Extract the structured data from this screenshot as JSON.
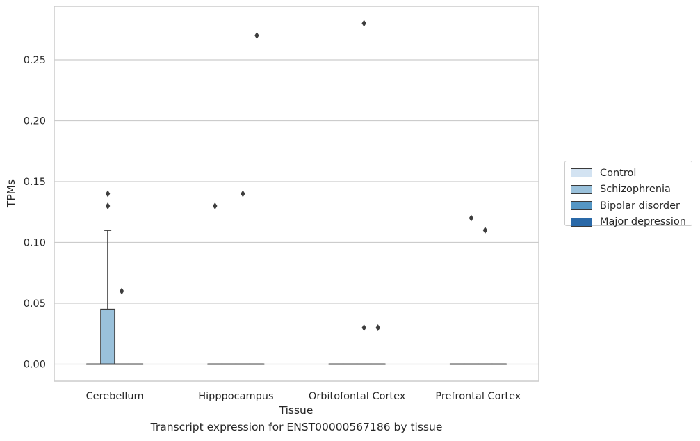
{
  "chart_data": {
    "type": "box",
    "title": "",
    "caption": "Transcript expression for ENST00000567186 by tissue",
    "xlabel": "Tissue",
    "ylabel": "TPMs",
    "categories": [
      "Cerebellum",
      "Hipppocampus",
      "Orbitofontal Cortex",
      "Prefrontal Cortex"
    ],
    "ylim": [
      -0.014,
      0.294
    ],
    "yticks": [
      "0.00",
      "0.05",
      "0.10",
      "0.15",
      "0.20",
      "0.25"
    ],
    "grid": true,
    "legend_position": "right",
    "series": [
      {
        "name": "Control",
        "color": "#d3e3f2",
        "boxes": [
          {
            "q1": 0,
            "median": 0,
            "q3": 0,
            "whislo": 0,
            "whishi": 0,
            "fliers": []
          },
          {
            "q1": 0,
            "median": 0,
            "q3": 0,
            "whislo": 0,
            "whishi": 0,
            "fliers": [
              0.13
            ]
          },
          {
            "q1": 0,
            "median": 0,
            "q3": 0,
            "whislo": 0,
            "whishi": 0,
            "fliers": []
          },
          {
            "q1": 0,
            "median": 0,
            "q3": 0,
            "whislo": 0,
            "whishi": 0,
            "fliers": []
          }
        ]
      },
      {
        "name": "Schizophrenia",
        "color": "#9ac1db",
        "boxes": [
          {
            "q1": 0,
            "median": 0,
            "q3": 0.045,
            "whislo": 0,
            "whishi": 0.11,
            "fliers": [
              0.13,
              0.14
            ]
          },
          {
            "q1": 0,
            "median": 0,
            "q3": 0,
            "whislo": 0,
            "whishi": 0,
            "fliers": []
          },
          {
            "q1": 0,
            "median": 0,
            "q3": 0,
            "whislo": 0,
            "whishi": 0,
            "fliers": []
          },
          {
            "q1": 0,
            "median": 0,
            "q3": 0,
            "whislo": 0,
            "whishi": 0,
            "fliers": [
              0.12
            ]
          }
        ]
      },
      {
        "name": "Bipolar disorder",
        "color": "#5596c4",
        "boxes": [
          {
            "q1": 0,
            "median": 0,
            "q3": 0,
            "whislo": 0,
            "whishi": 0,
            "fliers": [
              0.06
            ]
          },
          {
            "q1": 0,
            "median": 0,
            "q3": 0,
            "whislo": 0,
            "whishi": 0,
            "fliers": [
              0.14
            ]
          },
          {
            "q1": 0,
            "median": 0,
            "q3": 0,
            "whislo": 0,
            "whishi": 0,
            "fliers": [
              0.28,
              0.03
            ]
          },
          {
            "q1": 0,
            "median": 0,
            "q3": 0,
            "whislo": 0,
            "whishi": 0,
            "fliers": [
              0.11
            ]
          }
        ]
      },
      {
        "name": "Major depression",
        "color": "#2a69a8",
        "boxes": [
          {
            "q1": 0,
            "median": 0,
            "q3": 0,
            "whislo": 0,
            "whishi": 0,
            "fliers": []
          },
          {
            "q1": 0,
            "median": 0,
            "q3": 0,
            "whislo": 0,
            "whishi": 0,
            "fliers": [
              0.27
            ]
          },
          {
            "q1": 0,
            "median": 0,
            "q3": 0,
            "whislo": 0,
            "whishi": 0,
            "fliers": [
              0.03
            ]
          },
          {
            "q1": 0,
            "median": 0,
            "q3": 0,
            "whislo": 0,
            "whishi": 0,
            "fliers": []
          }
        ]
      }
    ]
  }
}
